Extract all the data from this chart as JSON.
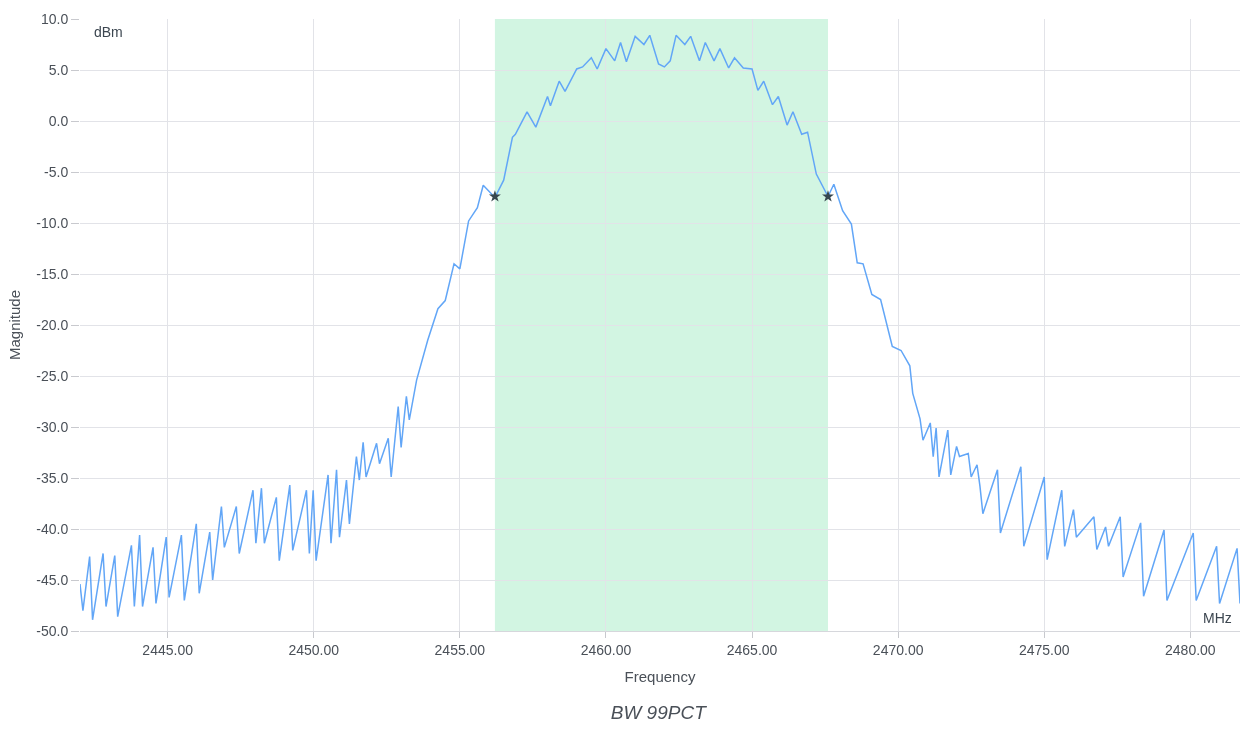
{
  "chart_data": {
    "type": "line",
    "title": "BW 99PCT",
    "xlabel": "Frequency",
    "ylabel": "Magnitude",
    "annotations": [
      "dBm",
      "MHz"
    ],
    "series": [
      {
        "color": "#62a6f7",
        "x": [
          2442.0,
          2442.1,
          2442.33,
          2442.43,
          2442.79,
          2442.89,
          2443.19,
          2443.29,
          2443.76,
          2443.86,
          2444.04,
          2444.14,
          2444.5,
          2444.6,
          2444.95,
          2445.05,
          2445.47,
          2445.57,
          2445.98,
          2446.08,
          2446.44,
          2446.54,
          2446.84,
          2446.94,
          2447.35,
          2447.45,
          2447.92,
          2448.02,
          2448.21,
          2448.31,
          2448.72,
          2448.82,
          2449.18,
          2449.28,
          2449.75,
          2449.85,
          2449.98,
          2450.08,
          2450.49,
          2450.59,
          2450.78,
          2450.88,
          2451.12,
          2451.22,
          2451.46,
          2451.56,
          2451.69,
          2451.79,
          2452.15,
          2452.25,
          2452.55,
          2452.65,
          2452.89,
          2452.99,
          2453.17,
          2453.27,
          2453.52,
          2453.9,
          2454.25,
          2454.5,
          2454.8,
          2455.0,
          2455.3,
          2455.6,
          2455.8,
          2456.2,
          2456.5,
          2456.8,
          2456.9,
          2457.3,
          2457.6,
          2458.0,
          2458.1,
          2458.4,
          2458.6,
          2459.0,
          2459.2,
          2459.5,
          2459.7,
          2460.0,
          2460.3,
          2460.5,
          2460.7,
          2461.0,
          2461.3,
          2461.5,
          2461.8,
          2462.0,
          2462.2,
          2462.4,
          2462.7,
          2462.9,
          2463.2,
          2463.4,
          2463.7,
          2463.9,
          2464.2,
          2464.4,
          2464.7,
          2465.0,
          2465.2,
          2465.4,
          2465.7,
          2465.9,
          2466.2,
          2466.4,
          2466.7,
          2466.9,
          2467.2,
          2467.6,
          2467.8,
          2468.1,
          2468.4,
          2468.6,
          2468.8,
          2469.1,
          2469.4,
          2469.8,
          2470.1,
          2470.4,
          2470.5,
          2470.75,
          2470.85,
          2471.1,
          2471.2,
          2471.3,
          2471.4,
          2471.7,
          2471.8,
          2472.0,
          2472.1,
          2472.4,
          2472.5,
          2472.7,
          2472.8,
          2472.9,
          2473.4,
          2473.5,
          2474.2,
          2474.3,
          2475.0,
          2475.1,
          2475.6,
          2475.7,
          2476.0,
          2476.1,
          2476.7,
          2476.8,
          2477.1,
          2477.2,
          2477.6,
          2477.7,
          2478.3,
          2478.4,
          2479.1,
          2479.2,
          2480.1,
          2480.2,
          2480.9,
          2481.0,
          2481.6,
          2481.7
        ],
        "values": [
          -45.4,
          -48,
          -42.7,
          -48.9,
          -42.4,
          -47.6,
          -42.6,
          -48.6,
          -41.6,
          -47.6,
          -40.6,
          -47.6,
          -41.8,
          -47.3,
          -40.8,
          -46.7,
          -40.6,
          -47,
          -39.5,
          -46.3,
          -40.3,
          -45,
          -37.8,
          -41.8,
          -37.8,
          -42.4,
          -36.2,
          -41.4,
          -36,
          -41.4,
          -36.9,
          -43.1,
          -35.7,
          -42.1,
          -36.2,
          -42.4,
          -36.2,
          -43.1,
          -34.7,
          -41.4,
          -34.2,
          -40.8,
          -35.2,
          -39.5,
          -32.9,
          -35.2,
          -31.5,
          -34.9,
          -31.6,
          -33.6,
          -31.1,
          -34.9,
          -28,
          -32,
          -27,
          -29.3,
          -25.4,
          -21.5,
          -18.4,
          -17.6,
          -14,
          -14.5,
          -9.8,
          -8.5,
          -6.3,
          -7.5,
          -5.8,
          -1.6,
          -1.3,
          0.9,
          -0.6,
          2.4,
          1.5,
          3.9,
          2.9,
          5.1,
          5.3,
          6.2,
          5.1,
          7.1,
          5.9,
          7.7,
          5.8,
          8.3,
          7.5,
          8.4,
          5.6,
          5.3,
          5.9,
          8.4,
          7.5,
          8.3,
          5.9,
          7.7,
          5.9,
          7.1,
          5.2,
          6.2,
          5.2,
          5.1,
          3.0,
          3.9,
          1.6,
          2.4,
          -0.4,
          0.9,
          -1.3,
          -1.1,
          -5.2,
          -7.4,
          -6.2,
          -8.8,
          -10.1,
          -13.9,
          -14.0,
          -17.0,
          -17.5,
          -22.1,
          -22.5,
          -24,
          -26.7,
          -29.2,
          -31.3,
          -29.6,
          -32.9,
          -30.1,
          -34.9,
          -30.3,
          -34.7,
          -31.9,
          -32.9,
          -32.6,
          -34.9,
          -33.7,
          -35.8,
          -38.5,
          -34.2,
          -40.4,
          -33.9,
          -41.7,
          -34.9,
          -43,
          -36.2,
          -41.7,
          -38.1,
          -40.8,
          -38.8,
          -42,
          -39.8,
          -41.7,
          -38.8,
          -44.7,
          -39.4,
          -46.6,
          -40.1,
          -47,
          -40.4,
          -47,
          -41.7,
          -47.3,
          -41.9,
          -47.3
        ]
      },
      {
        "type": "scatter",
        "marker": "star",
        "color": "#37474f",
        "x": [
          2456.2,
          2467.6
        ],
        "values": [
          -7.4,
          -7.4
        ]
      }
    ],
    "bands": [
      {
        "axis": "x",
        "from": 2456.2,
        "to": 2467.6,
        "color": "#d2f5e2"
      }
    ],
    "xlim": [
      2442,
      2481.7
    ],
    "ylim": [
      -50,
      10
    ],
    "xticks": [
      {
        "value": 2445,
        "label": "2445.00"
      },
      {
        "value": 2450,
        "label": "2450.00"
      },
      {
        "value": 2455,
        "label": "2455.00"
      },
      {
        "value": 2460,
        "label": "2460.00"
      },
      {
        "value": 2465,
        "label": "2465.00"
      },
      {
        "value": 2470,
        "label": "2470.00"
      },
      {
        "value": 2475,
        "label": "2475.00"
      },
      {
        "value": 2480,
        "label": "2480.00"
      }
    ],
    "yticks": [
      {
        "value": -50,
        "label": "-50.0"
      },
      {
        "value": -45,
        "label": "-45.0"
      },
      {
        "value": -40,
        "label": "-40.0"
      },
      {
        "value": -35,
        "label": "-35.0"
      },
      {
        "value": -30,
        "label": "-30.0"
      },
      {
        "value": -25,
        "label": "-25.0"
      },
      {
        "value": -20,
        "label": "-20.0"
      },
      {
        "value": -15,
        "label": "-15.0"
      },
      {
        "value": -10,
        "label": "-10.0"
      },
      {
        "value": -5,
        "label": "-5.0"
      },
      {
        "value": 0,
        "label": "0.0"
      },
      {
        "value": 5,
        "label": "5.0"
      },
      {
        "value": 10,
        "label": "10.0"
      }
    ],
    "grid": true,
    "marker": "none",
    "line_style": "solid"
  }
}
